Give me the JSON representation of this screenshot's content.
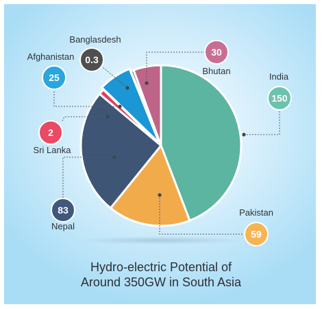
{
  "caption": {
    "line1": "Hydro-electric Potential of",
    "line2": "Around 350GW in South Asia"
  },
  "chart_data": {
    "type": "pie",
    "title": "Hydro-electric Potential of Around 350GW in South Asia",
    "slices": [
      {
        "label": "India",
        "value": 150,
        "display": "150",
        "color": "#5bb5a0",
        "badge_color": "#6cc3ad"
      },
      {
        "label": "Pakistan",
        "value": 59,
        "display": "59",
        "color": "#f2ab4b",
        "badge_color": "#f6b553"
      },
      {
        "label": "Nepal",
        "value": 83,
        "display": "83",
        "color": "#3e5575",
        "badge_color": "#40587c"
      },
      {
        "label": "Sri Lanka",
        "value": 2,
        "display": "2",
        "color": "#e53a56",
        "badge_color": "#ea4a64"
      },
      {
        "label": "Afghanistan",
        "value": 25,
        "display": "25",
        "color": "#1a97d4",
        "badge_color": "#2aa5de"
      },
      {
        "label": "Banglasdesh",
        "value": 0.3,
        "display": "0.3",
        "color": "#4a4a4a",
        "badge_color": "#4f4f4f"
      },
      {
        "label": "Bhutan",
        "value": 30,
        "display": "30",
        "color": "#bf6489",
        "badge_color": "#c86e94"
      }
    ]
  }
}
